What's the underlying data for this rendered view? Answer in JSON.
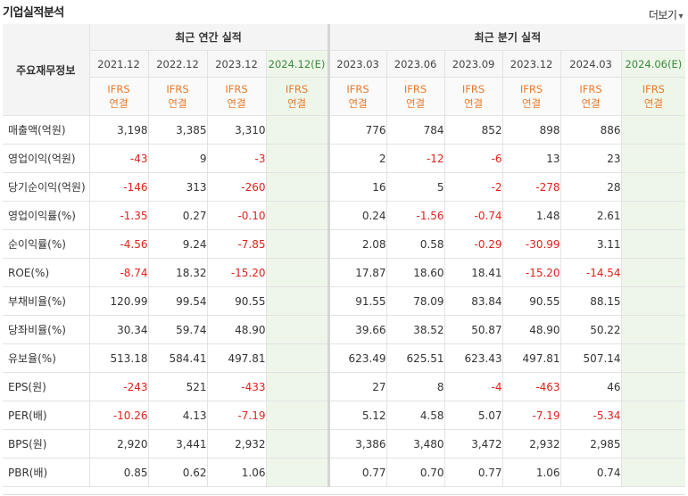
{
  "header": {
    "title": "기업실적분석",
    "more_label": "더보기",
    "more_icon": "chevron-down-icon"
  },
  "table": {
    "row_header_label": "주요재무정보",
    "group_annual": "최근 연간 실적",
    "group_quarter": "최근 분기 실적",
    "periods": [
      "2021.12",
      "2022.12",
      "2023.12",
      "2024.12(E)",
      "2023.03",
      "2023.06",
      "2023.09",
      "2023.12",
      "2024.03",
      "2024.06(E)"
    ],
    "ifrs_label": [
      "IFRS",
      "연결"
    ],
    "rows": [
      {
        "label": "매출액(억원)",
        "values": [
          "3,198",
          "3,385",
          "3,310",
          "",
          "776",
          "784",
          "852",
          "898",
          "886",
          ""
        ]
      },
      {
        "label": "영업이익(억원)",
        "values": [
          "-43",
          "9",
          "-3",
          "",
          "2",
          "-12",
          "-6",
          "13",
          "23",
          ""
        ]
      },
      {
        "label": "당기순이익(억원)",
        "values": [
          "-146",
          "313",
          "-260",
          "",
          "16",
          "5",
          "-2",
          "-278",
          "28",
          ""
        ]
      },
      {
        "label": "영업이익률(%)",
        "values": [
          "-1.35",
          "0.27",
          "-0.10",
          "",
          "0.24",
          "-1.56",
          "-0.74",
          "1.48",
          "2.61",
          ""
        ]
      },
      {
        "label": "순이익률(%)",
        "values": [
          "-4.56",
          "9.24",
          "-7.85",
          "",
          "2.08",
          "0.58",
          "-0.29",
          "-30.99",
          "3.11",
          ""
        ]
      },
      {
        "label": "ROE(%)",
        "values": [
          "-8.74",
          "18.32",
          "-15.20",
          "",
          "17.87",
          "18.60",
          "18.41",
          "-15.20",
          "-14.54",
          ""
        ]
      },
      {
        "label": "부채비율(%)",
        "values": [
          "120.99",
          "99.54",
          "90.55",
          "",
          "91.55",
          "78.09",
          "83.84",
          "90.55",
          "88.15",
          ""
        ]
      },
      {
        "label": "당좌비율(%)",
        "values": [
          "30.34",
          "59.74",
          "48.90",
          "",
          "39.66",
          "38.52",
          "50.87",
          "48.90",
          "50.22",
          ""
        ]
      },
      {
        "label": "유보율(%)",
        "values": [
          "513.18",
          "584.41",
          "497.81",
          "",
          "623.49",
          "625.51",
          "623.43",
          "497.81",
          "507.14",
          ""
        ]
      },
      {
        "label": "EPS(원)",
        "values": [
          "-243",
          "521",
          "-433",
          "",
          "27",
          "8",
          "-4",
          "-463",
          "46",
          ""
        ]
      },
      {
        "label": "PER(배)",
        "values": [
          "-10.26",
          "4.13",
          "-7.19",
          "",
          "5.12",
          "4.58",
          "5.07",
          "-7.19",
          "-5.34",
          ""
        ]
      },
      {
        "label": "BPS(원)",
        "values": [
          "2,920",
          "3,441",
          "2,932",
          "",
          "3,386",
          "3,480",
          "3,472",
          "2,932",
          "2,985",
          ""
        ]
      },
      {
        "label": "PBR(배)",
        "values": [
          "0.85",
          "0.62",
          "1.06",
          "",
          "0.77",
          "0.70",
          "0.77",
          "1.06",
          "0.74",
          ""
        ]
      }
    ]
  },
  "colors": {
    "negative": "#e0231c",
    "ifrs": "#e87b2a",
    "estimate_bg": "#eef6ea",
    "estimate_text": "#3a8a3a"
  }
}
